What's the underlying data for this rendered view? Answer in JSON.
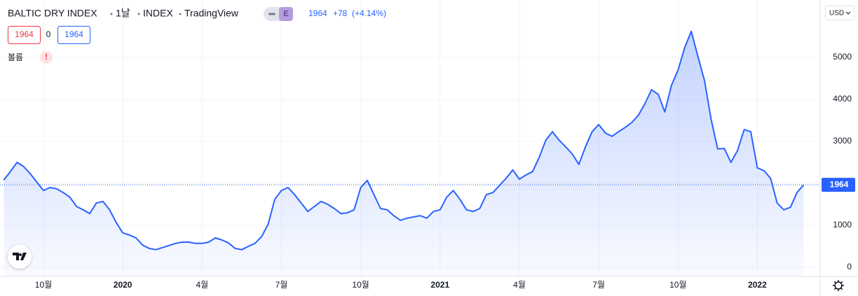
{
  "header": {
    "symbol": "BALTIC DRY INDEX",
    "interval": "1날",
    "exchange": "INDEX",
    "source": "TradingView",
    "badge": "E",
    "last": "1964",
    "change": "+78",
    "change_pct": "(+4.14%)",
    "bid": 1964,
    "spread": 0,
    "ask": 1964,
    "volume_label": "볼륨",
    "warning": "!",
    "currency": "USD"
  },
  "chart_data": {
    "type": "area",
    "color": "#2962ff",
    "grid": true,
    "categories": [
      null,
      null,
      null,
      null,
      null,
      null,
      "10월",
      null,
      null,
      null,
      null,
      null,
      null,
      null,
      null,
      null,
      null,
      null,
      "2020",
      null,
      null,
      null,
      null,
      null,
      null,
      null,
      null,
      null,
      null,
      null,
      "4월",
      null,
      null,
      null,
      null,
      null,
      null,
      null,
      null,
      null,
      null,
      null,
      "7월",
      null,
      null,
      null,
      null,
      null,
      null,
      null,
      null,
      null,
      null,
      null,
      "10월",
      null,
      null,
      null,
      null,
      null,
      null,
      null,
      null,
      null,
      null,
      null,
      "2021",
      null,
      null,
      null,
      null,
      null,
      null,
      null,
      null,
      null,
      null,
      null,
      "4월",
      null,
      null,
      null,
      null,
      null,
      null,
      null,
      null,
      null,
      null,
      null,
      "7월",
      null,
      null,
      null,
      null,
      null,
      null,
      null,
      null,
      null,
      null,
      null,
      "10월",
      null,
      null,
      null,
      null,
      null,
      null,
      null,
      null,
      null,
      null,
      null,
      "2022",
      null,
      null,
      null,
      null,
      null,
      null,
      null
    ],
    "values": [
      2080,
      2280,
      2500,
      2400,
      2230,
      2030,
      1830,
      1900,
      1870,
      1780,
      1670,
      1450,
      1370,
      1280,
      1530,
      1570,
      1370,
      1070,
      820,
      770,
      700,
      530,
      450,
      420,
      470,
      520,
      570,
      600,
      600,
      570,
      570,
      600,
      700,
      650,
      580,
      450,
      420,
      500,
      570,
      730,
      1030,
      1620,
      1830,
      1900,
      1730,
      1530,
      1330,
      1450,
      1570,
      1500,
      1400,
      1280,
      1300,
      1370,
      1900,
      2070,
      1730,
      1400,
      1370,
      1230,
      1120,
      1170,
      1200,
      1230,
      1170,
      1330,
      1370,
      1670,
      1830,
      1620,
      1370,
      1330,
      1400,
      1730,
      1780,
      1950,
      2120,
      2320,
      2100,
      2200,
      2280,
      2620,
      3030,
      3230,
      3030,
      2870,
      2700,
      2450,
      2870,
      3230,
      3400,
      3200,
      3120,
      3230,
      3330,
      3450,
      3620,
      3900,
      4230,
      4120,
      3700,
      4330,
      4700,
      5230,
      5620,
      5030,
      4450,
      3530,
      2820,
      2830,
      2500,
      2780,
      3280,
      3230,
      2370,
      2300,
      2120,
      1530,
      1370,
      1430,
      1780,
      1964
    ],
    "ylim": [
      -217,
      6367
    ],
    "yticks": [
      0,
      1000,
      2000,
      3000,
      4000,
      5000
    ]
  }
}
